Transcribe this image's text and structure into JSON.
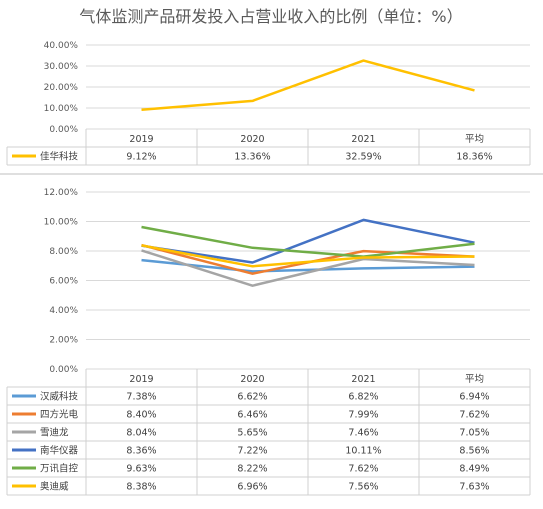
{
  "title": "气体监测产品研发投入占营业收入的比例（单位：%）",
  "chart_data": [
    {
      "type": "line",
      "categories": [
        "2019",
        "2020",
        "2021",
        "平均"
      ],
      "ylim": [
        0,
        40
      ],
      "yticks": [
        "0.00%",
        "10.00%",
        "20.00%",
        "30.00%",
        "40.00%"
      ],
      "grid": true,
      "legend": "data-table",
      "series": [
        {
          "name": "佳华科技",
          "color": "#ffc000",
          "values": [
            9.12,
            13.36,
            32.59,
            18.36
          ],
          "labels": [
            "9.12%",
            "13.36%",
            "32.59%",
            "18.36%"
          ]
        }
      ]
    },
    {
      "type": "line",
      "categories": [
        "2019",
        "2020",
        "2021",
        "平均"
      ],
      "ylim": [
        0,
        12
      ],
      "yticks": [
        "0.00%",
        "2.00%",
        "4.00%",
        "6.00%",
        "8.00%",
        "10.00%",
        "12.00%"
      ],
      "grid": true,
      "legend": "data-table",
      "series": [
        {
          "name": "汉威科技",
          "color": "#5b9bd5",
          "values": [
            7.38,
            6.62,
            6.82,
            6.94
          ],
          "labels": [
            "7.38%",
            "6.62%",
            "6.82%",
            "6.94%"
          ]
        },
        {
          "name": "四方光电",
          "color": "#ed7d31",
          "values": [
            8.4,
            6.46,
            7.99,
            7.62
          ],
          "labels": [
            "8.40%",
            "6.46%",
            "7.99%",
            "7.62%"
          ]
        },
        {
          "name": "雪迪龙",
          "color": "#a5a5a5",
          "values": [
            8.04,
            5.65,
            7.46,
            7.05
          ],
          "labels": [
            "8.04%",
            "5.65%",
            "7.46%",
            "7.05%"
          ]
        },
        {
          "name": "南华仪器",
          "color": "#4472c4",
          "values": [
            8.36,
            7.22,
            10.11,
            8.56
          ],
          "labels": [
            "8.36%",
            "7.22%",
            "10.11%",
            "8.56%"
          ]
        },
        {
          "name": "万讯自控",
          "color": "#70ad47",
          "values": [
            9.63,
            8.22,
            7.62,
            8.49
          ],
          "labels": [
            "9.63%",
            "8.22%",
            "7.62%",
            "8.49%"
          ]
        },
        {
          "name": "奥迪威",
          "color": "#ffc000",
          "values": [
            8.38,
            6.96,
            7.56,
            7.63
          ],
          "labels": [
            "8.38%",
            "6.96%",
            "7.56%",
            "7.63%"
          ]
        }
      ]
    }
  ]
}
